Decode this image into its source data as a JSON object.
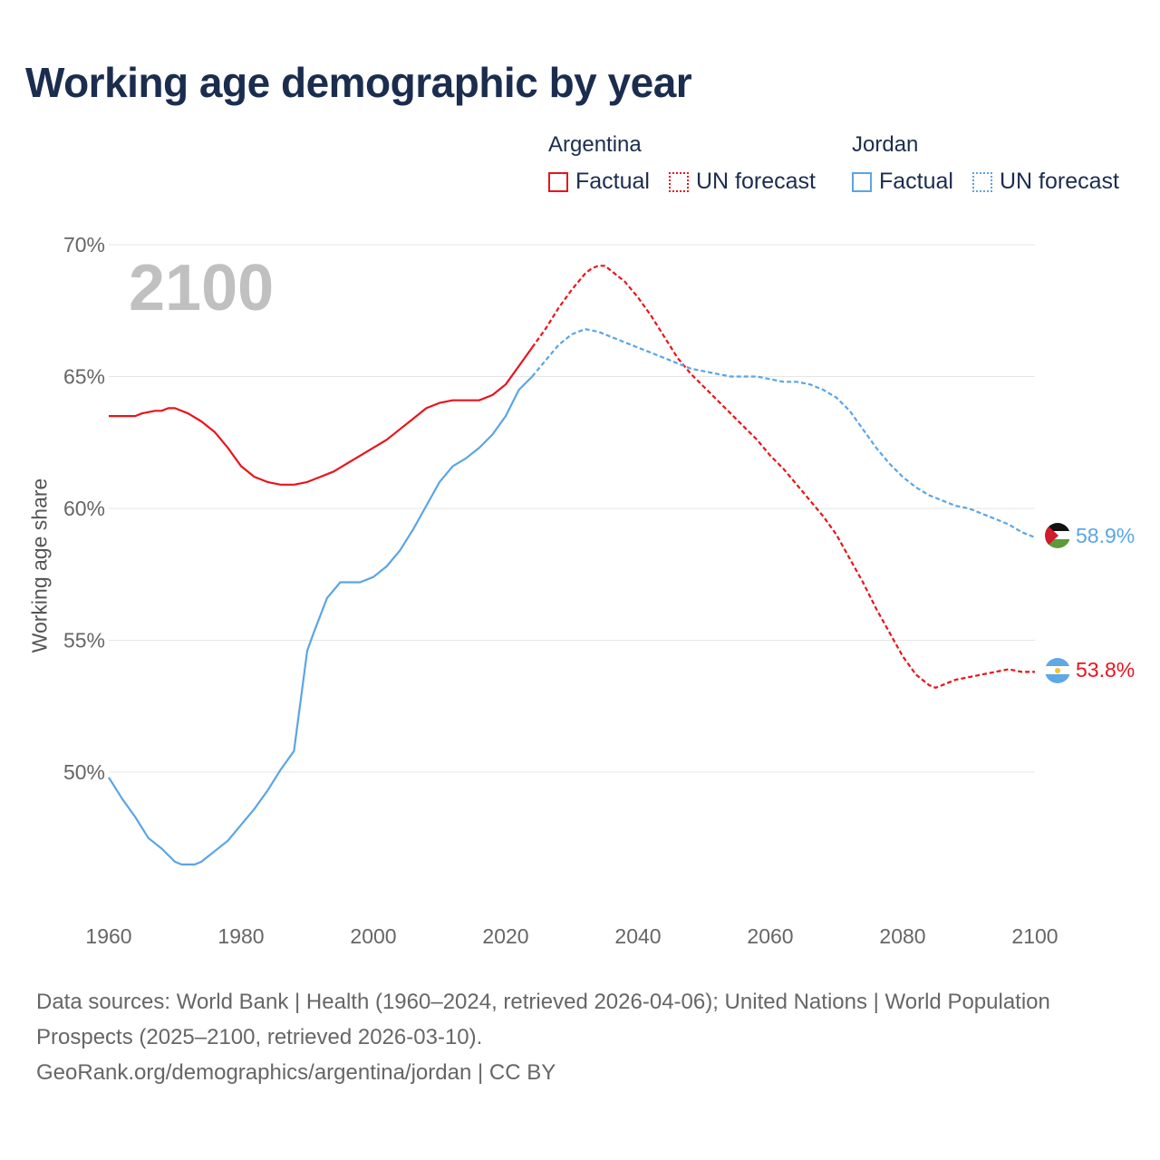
{
  "title": "Working age demographic by year",
  "legend": {
    "groups": [
      {
        "country": "Argentina",
        "factual_label": "Factual",
        "forecast_label": "UN forecast",
        "color": "#e8141c"
      },
      {
        "country": "Jordan",
        "factual_label": "Factual",
        "forecast_label": "UN forecast",
        "color": "#5aa5e6"
      }
    ]
  },
  "year_watermark": "2100",
  "footer": {
    "sources": "Data sources: World Bank | Health (1960–2024, retrieved 2026-04-06); United Nations | World Population Prospects (2025–2100, retrieved 2026-03-10).",
    "credit": "GeoRank.org/demographics/argentina/jordan | CC BY"
  },
  "chart_data": {
    "type": "line",
    "ylabel": "Working age share",
    "xlim": [
      1960,
      2100
    ],
    "ylim": [
      45,
      70
    ],
    "y_ticks": [
      50,
      55,
      60,
      65,
      70
    ],
    "y_tick_labels": [
      "50%",
      "55%",
      "60%",
      "65%",
      "70%"
    ],
    "x_ticks": [
      1960,
      1980,
      2000,
      2020,
      2040,
      2060,
      2080,
      2100
    ],
    "x_tick_labels": [
      "1960",
      "1980",
      "2000",
      "2020",
      "2040",
      "2060",
      "2080",
      "2100"
    ],
    "factual_end_year": 2024,
    "series": [
      {
        "name": "Argentina",
        "color": "#e8141c",
        "end_label": "53.8%",
        "flag": "argentina-flag",
        "x": [
          1960,
          1964,
          1965,
          1967,
          1968,
          1969,
          1970,
          1972,
          1974,
          1976,
          1978,
          1980,
          1982,
          1984,
          1986,
          1988,
          1990,
          1992,
          1994,
          1996,
          1998,
          2000,
          2002,
          2004,
          2006,
          2008,
          2010,
          2012,
          2014,
          2016,
          2018,
          2020,
          2022,
          2024,
          2026,
          2028,
          2030,
          2032,
          2033,
          2034,
          2035,
          2036,
          2038,
          2040,
          2042,
          2044,
          2046,
          2048,
          2050,
          2052,
          2054,
          2056,
          2058,
          2060,
          2062,
          2064,
          2066,
          2068,
          2070,
          2072,
          2074,
          2076,
          2078,
          2080,
          2082,
          2084,
          2085,
          2086,
          2088,
          2090,
          2092,
          2094,
          2096,
          2098,
          2100
        ],
        "values": [
          63.5,
          63.5,
          63.6,
          63.7,
          63.7,
          63.8,
          63.8,
          63.6,
          63.3,
          62.9,
          62.3,
          61.6,
          61.2,
          61.0,
          60.9,
          60.9,
          61.0,
          61.2,
          61.4,
          61.7,
          62.0,
          62.3,
          62.6,
          63.0,
          63.4,
          63.8,
          64.0,
          64.1,
          64.1,
          64.1,
          64.3,
          64.7,
          65.4,
          66.1,
          66.8,
          67.6,
          68.3,
          68.9,
          69.1,
          69.2,
          69.2,
          69.0,
          68.6,
          68.0,
          67.3,
          66.5,
          65.7,
          65.1,
          64.6,
          64.1,
          63.6,
          63.1,
          62.6,
          62.0,
          61.5,
          60.9,
          60.3,
          59.7,
          59.0,
          58.1,
          57.2,
          56.2,
          55.3,
          54.4,
          53.7,
          53.3,
          53.2,
          53.3,
          53.5,
          53.6,
          53.7,
          53.8,
          53.9,
          53.8,
          53.8
        ]
      },
      {
        "name": "Jordan",
        "color": "#5aa5e6",
        "end_label": "58.9%",
        "flag": "jordan-flag",
        "x": [
          1960,
          1962,
          1964,
          1966,
          1968,
          1970,
          1971,
          1972,
          1973,
          1974,
          1976,
          1978,
          1980,
          1982,
          1984,
          1986,
          1988,
          1990,
          1991,
          1993,
          1995,
          1996,
          1998,
          2000,
          2002,
          2004,
          2006,
          2008,
          2010,
          2012,
          2014,
          2016,
          2018,
          2020,
          2022,
          2024,
          2026,
          2028,
          2030,
          2032,
          2034,
          2036,
          2038,
          2040,
          2042,
          2044,
          2046,
          2048,
          2050,
          2052,
          2054,
          2056,
          2058,
          2060,
          2062,
          2064,
          2066,
          2068,
          2070,
          2072,
          2074,
          2076,
          2078,
          2080,
          2082,
          2084,
          2086,
          2088,
          2090,
          2092,
          2094,
          2096,
          2098,
          2100
        ],
        "values": [
          49.8,
          49.0,
          48.3,
          47.5,
          47.1,
          46.6,
          46.5,
          46.5,
          46.5,
          46.6,
          47.0,
          47.4,
          48.0,
          48.6,
          49.3,
          50.1,
          50.8,
          54.6,
          55.3,
          56.6,
          57.2,
          57.2,
          57.2,
          57.4,
          57.8,
          58.4,
          59.2,
          60.1,
          61.0,
          61.6,
          61.9,
          62.3,
          62.8,
          63.5,
          64.5,
          65.0,
          65.6,
          66.2,
          66.6,
          66.8,
          66.7,
          66.5,
          66.3,
          66.1,
          65.9,
          65.7,
          65.5,
          65.3,
          65.2,
          65.1,
          65.0,
          65.0,
          65.0,
          64.9,
          64.8,
          64.8,
          64.7,
          64.5,
          64.2,
          63.7,
          63.0,
          62.3,
          61.7,
          61.2,
          60.8,
          60.5,
          60.3,
          60.1,
          60.0,
          59.8,
          59.6,
          59.4,
          59.1,
          58.9
        ]
      }
    ]
  }
}
